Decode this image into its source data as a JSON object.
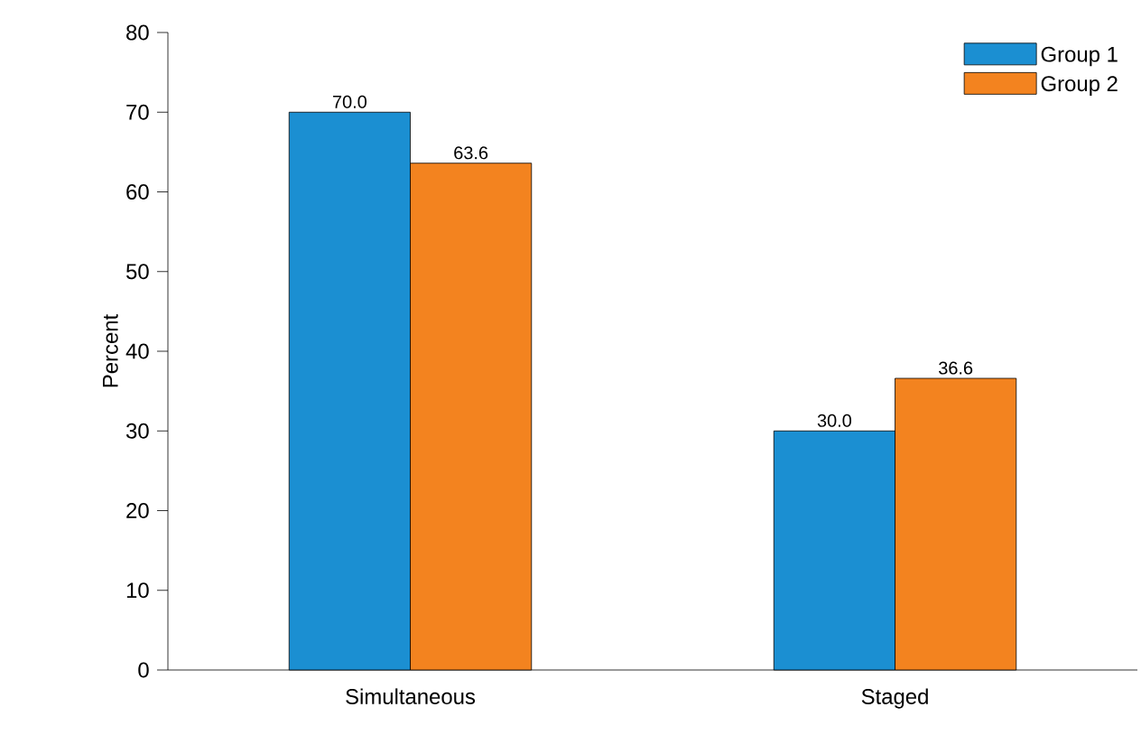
{
  "chart_data": {
    "type": "bar",
    "ylabel": "Percent",
    "categories": [
      "Simultaneous",
      "Staged"
    ],
    "series": [
      {
        "name": "Group 1",
        "color": "#1b8fd2",
        "values": [
          70.0,
          30.0
        ],
        "value_labels": [
          "70.0",
          "30.0"
        ]
      },
      {
        "name": "Group 2",
        "color": "#f3831f",
        "values": [
          63.6,
          36.6
        ],
        "value_labels": [
          "63.6",
          "36.6"
        ]
      }
    ],
    "ylim": [
      0,
      80
    ],
    "yticks": [
      0,
      10,
      20,
      30,
      40,
      50,
      60,
      70,
      80
    ],
    "legend": "top right",
    "grid": false
  }
}
